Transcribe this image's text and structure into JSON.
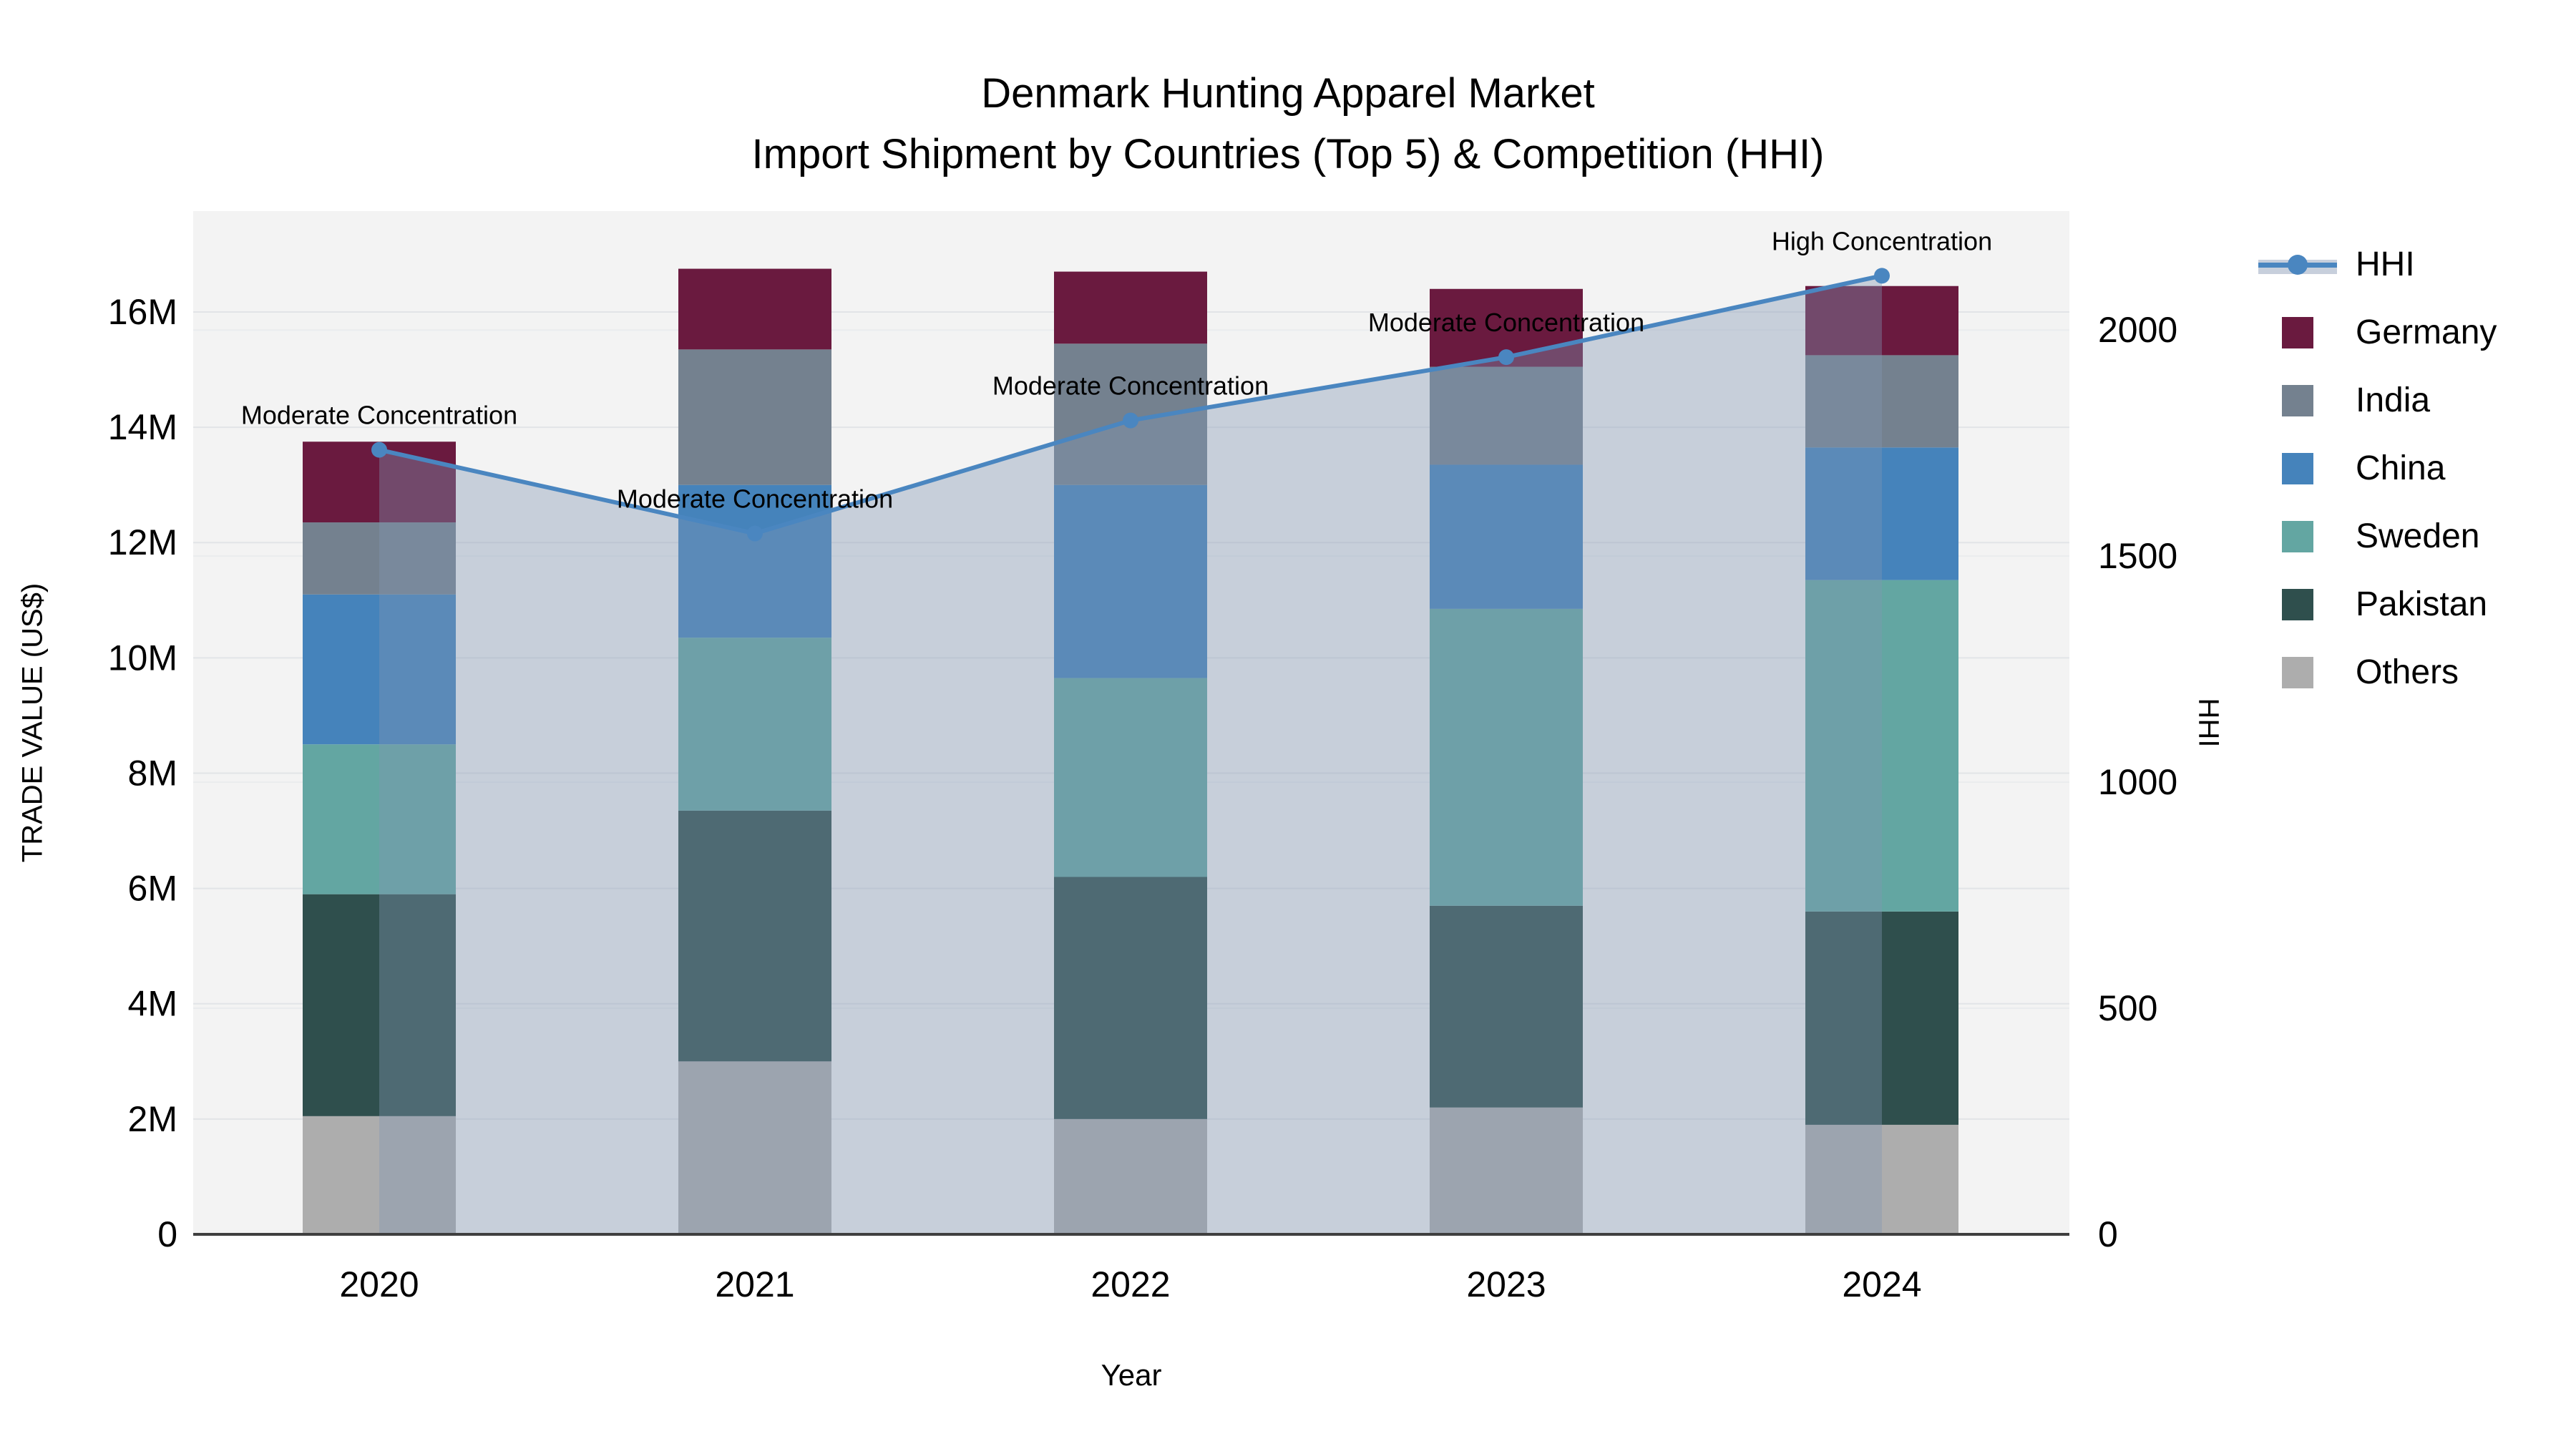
{
  "title": {
    "line1": "Denmark Hunting Apparel Market",
    "line2": "Import Shipment by Countries (Top 5) & Competition (HHI)"
  },
  "axes": {
    "left": {
      "title": "TRADE VALUE (US$)",
      "tick_labels": [
        "0",
        "2M",
        "4M",
        "6M",
        "8M",
        "10M",
        "12M",
        "14M",
        "16M"
      ],
      "tick_values_millions": [
        0,
        2,
        4,
        6,
        8,
        10,
        12,
        14,
        16
      ],
      "range_millions": [
        0,
        17.75
      ]
    },
    "right": {
      "title": "HHI",
      "tick_labels": [
        "0",
        "500",
        "1000",
        "1500",
        "2000"
      ],
      "tick_values": [
        0,
        500,
        1000,
        1500,
        2000
      ],
      "range": [
        0,
        2263
      ]
    },
    "x": {
      "title": "Year",
      "tick_labels": [
        "2020",
        "2021",
        "2022",
        "2023",
        "2024"
      ]
    }
  },
  "legend": {
    "items": [
      {
        "label": "HHI",
        "type": "line",
        "color": "#4a86c0"
      },
      {
        "label": "Germany",
        "type": "swatch",
        "color": "#6a1a3f"
      },
      {
        "label": "India",
        "type": "swatch",
        "color": "#74818f"
      },
      {
        "label": "China",
        "type": "swatch",
        "color": "#4583bb"
      },
      {
        "label": "Sweden",
        "type": "swatch",
        "color": "#63a6a2"
      },
      {
        "label": "Pakistan",
        "type": "swatch",
        "color": "#2f4f4d"
      },
      {
        "label": "Others",
        "type": "swatch",
        "color": "#adadad"
      }
    ]
  },
  "chart_data": {
    "type": "stacked_bar_with_line",
    "title": "Denmark Hunting Apparel Market — Import Shipment by Countries (Top 5) & Competition (HHI)",
    "categories": [
      "2020",
      "2021",
      "2022",
      "2023",
      "2024"
    ],
    "bar_unit": "million US$",
    "series": [
      {
        "name": "Others",
        "color": "#adadad",
        "values_millions": [
          2.05,
          3.0,
          2.0,
          2.2,
          1.9
        ]
      },
      {
        "name": "Pakistan",
        "color": "#2f4f4d",
        "values_millions": [
          3.85,
          4.35,
          4.2,
          3.5,
          3.7
        ]
      },
      {
        "name": "Sweden",
        "color": "#63a6a2",
        "values_millions": [
          2.6,
          3.0,
          3.45,
          5.15,
          5.75
        ]
      },
      {
        "name": "China",
        "color": "#4583bb",
        "values_millions": [
          2.6,
          2.65,
          3.35,
          2.5,
          2.3
        ]
      },
      {
        "name": "India",
        "color": "#74818f",
        "values_millions": [
          1.25,
          2.35,
          2.45,
          1.7,
          1.6
        ]
      },
      {
        "name": "Germany",
        "color": "#6a1a3f",
        "values_millions": [
          1.4,
          1.4,
          1.25,
          1.35,
          1.2
        ]
      }
    ],
    "totals_millions": [
      13.75,
      16.75,
      16.7,
      16.4,
      16.45
    ],
    "line_series": {
      "name": "HHI",
      "axis": "right",
      "color": "#4a86c0",
      "values": [
        1735,
        1550,
        1800,
        1940,
        2120
      ]
    },
    "annotations": [
      {
        "category": "2020",
        "text": "Moderate Concentration"
      },
      {
        "category": "2021",
        "text": "Moderate Concentration"
      },
      {
        "category": "2022",
        "text": "Moderate Concentration"
      },
      {
        "category": "2023",
        "text": "Moderate Concentration"
      },
      {
        "category": "2024",
        "text": "High Concentration"
      }
    ],
    "styles": {
      "plot_bg": "#f3f3f3",
      "grid_left_color": "#e2e4e7",
      "grid_right_color": "#eaecee",
      "baseline_color": "#3f3f3f",
      "area_fill": "rgba(130,150,178,0.38)",
      "annotation_font_px": 36,
      "tick_font_px": 50
    },
    "legend_position": "right",
    "grid": true
  }
}
